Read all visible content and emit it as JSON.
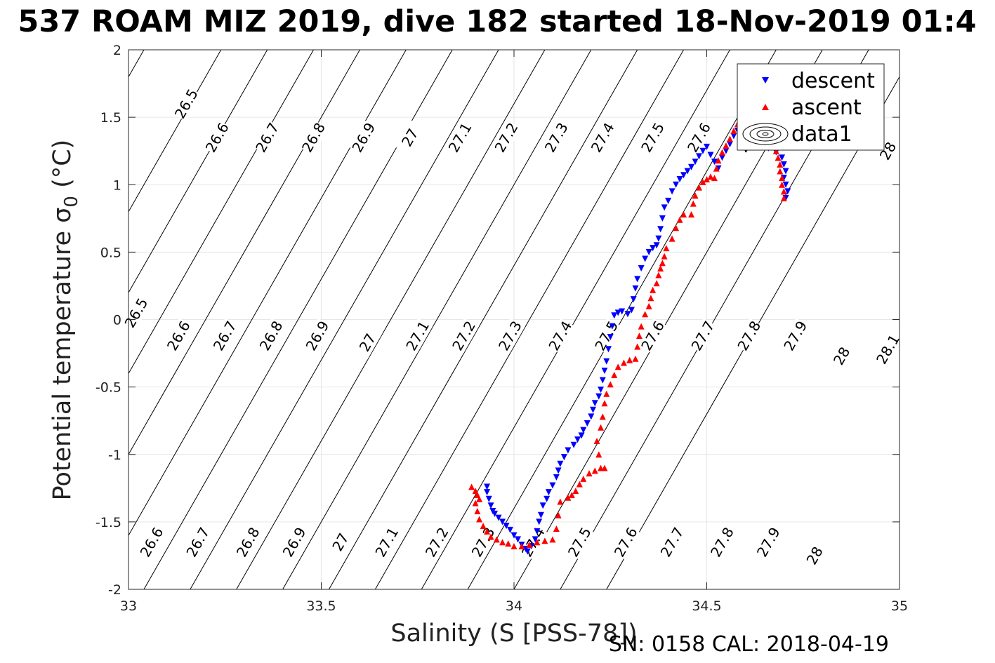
{
  "title": "537 ROAM MIZ 2019, dive 182 started 18-Nov-2019 01:4",
  "footer": "SN: 0158  CAL: 2018-04-19",
  "chart_data": {
    "type": "scatter",
    "xlabel": "Salinity (S [PSS-78])",
    "ylabel_main": "Potential temperature ",
    "ylabel_sym": "σ",
    "ylabel_sub": "0",
    "ylabel_unit": " (°C)",
    "xlim": [
      33,
      35
    ],
    "ylim": [
      -2,
      2
    ],
    "xticks": [
      33,
      33.5,
      34,
      34.5,
      35
    ],
    "xtick_labels": [
      "33",
      "33.5",
      "34",
      "34.5",
      "35"
    ],
    "yticks": [
      -2,
      -1.5,
      -1,
      -0.5,
      0,
      0.5,
      1,
      1.5,
      2
    ],
    "ytick_labels": [
      "-2",
      "-1.5",
      "-1",
      "-0.5",
      "0",
      "0.5",
      "1",
      "1.5",
      "2"
    ],
    "grid": true,
    "legend_position": "top-right",
    "legend": [
      "descent",
      "ascent",
      "data1"
    ],
    "colors": {
      "descent": "#0000ff",
      "ascent": "#ff0000",
      "contour": "#000000",
      "grid": "#e6e6e6"
    },
    "series": [
      {
        "name": "descent",
        "marker": "triangle-down",
        "points": [
          [
            33.93,
            -1.24
          ],
          [
            33.93,
            -1.28
          ],
          [
            33.935,
            -1.33
          ],
          [
            33.94,
            -1.38
          ],
          [
            33.945,
            -1.42
          ],
          [
            33.95,
            -1.44
          ],
          [
            33.96,
            -1.47
          ],
          [
            33.97,
            -1.5
          ],
          [
            33.98,
            -1.53
          ],
          [
            33.99,
            -1.56
          ],
          [
            34.0,
            -1.6
          ],
          [
            34.01,
            -1.63
          ],
          [
            34.02,
            -1.67
          ],
          [
            34.03,
            -1.7
          ],
          [
            34.035,
            -1.72
          ],
          [
            34.045,
            -1.68
          ],
          [
            34.055,
            -1.63
          ],
          [
            34.06,
            -1.57
          ],
          [
            34.065,
            -1.5
          ],
          [
            34.07,
            -1.45
          ],
          [
            34.075,
            -1.38
          ],
          [
            34.085,
            -1.33
          ],
          [
            34.09,
            -1.28
          ],
          [
            34.1,
            -1.23
          ],
          [
            34.11,
            -1.17
          ],
          [
            34.115,
            -1.12
          ],
          [
            34.12,
            -1.07
          ],
          [
            34.13,
            -1.02
          ],
          [
            34.14,
            -0.97
          ],
          [
            34.155,
            -0.93
          ],
          [
            34.165,
            -0.89
          ],
          [
            34.175,
            -0.86
          ],
          [
            34.18,
            -0.82
          ],
          [
            34.19,
            -0.77
          ],
          [
            34.2,
            -0.72
          ],
          [
            34.205,
            -0.67
          ],
          [
            34.21,
            -0.62
          ],
          [
            34.22,
            -0.57
          ],
          [
            34.225,
            -0.52
          ],
          [
            34.23,
            -0.45
          ],
          [
            34.235,
            -0.38
          ],
          [
            34.24,
            -0.31
          ],
          [
            34.245,
            -0.22
          ],
          [
            34.25,
            -0.13
          ],
          [
            34.255,
            -0.05
          ],
          [
            34.26,
            0.03
          ],
          [
            34.27,
            0.05
          ],
          [
            34.28,
            0.06
          ],
          [
            34.295,
            0.04
          ],
          [
            34.305,
            0.07
          ],
          [
            34.31,
            0.15
          ],
          [
            34.315,
            0.23
          ],
          [
            34.32,
            0.3
          ],
          [
            34.33,
            0.38
          ],
          [
            34.34,
            0.45
          ],
          [
            34.35,
            0.5
          ],
          [
            34.36,
            0.53
          ],
          [
            34.37,
            0.55
          ],
          [
            34.375,
            0.6
          ],
          [
            34.38,
            0.67
          ],
          [
            34.385,
            0.75
          ],
          [
            34.39,
            0.83
          ],
          [
            34.4,
            0.88
          ],
          [
            34.41,
            0.95
          ],
          [
            34.42,
            1.0
          ],
          [
            34.43,
            1.04
          ],
          [
            34.44,
            1.07
          ],
          [
            34.45,
            1.1
          ],
          [
            34.46,
            1.13
          ],
          [
            34.47,
            1.17
          ],
          [
            34.48,
            1.21
          ],
          [
            34.49,
            1.25
          ],
          [
            34.5,
            1.28
          ],
          [
            34.51,
            1.22
          ],
          [
            34.52,
            1.17
          ],
          [
            34.53,
            1.12
          ],
          [
            34.54,
            1.2
          ],
          [
            34.55,
            1.25
          ],
          [
            34.56,
            1.3
          ],
          [
            34.57,
            1.36
          ],
          [
            34.58,
            1.4
          ],
          [
            34.59,
            1.42
          ],
          [
            34.6,
            1.45
          ],
          [
            34.61,
            1.4
          ],
          [
            34.62,
            1.33
          ],
          [
            34.64,
            1.3
          ],
          [
            34.66,
            1.27
          ],
          [
            34.68,
            1.24
          ],
          [
            34.695,
            1.2
          ],
          [
            34.7,
            1.15
          ],
          [
            34.705,
            1.1
          ],
          [
            34.7,
            1.05
          ],
          [
            34.705,
            1.0
          ],
          [
            34.71,
            0.95
          ],
          [
            34.705,
            0.9
          ]
        ]
      },
      {
        "name": "ascent",
        "marker": "triangle-up",
        "points": [
          [
            33.89,
            -1.24
          ],
          [
            33.9,
            -1.27
          ],
          [
            33.905,
            -1.3
          ],
          [
            33.91,
            -1.33
          ],
          [
            33.9,
            -1.36
          ],
          [
            33.905,
            -1.42
          ],
          [
            33.91,
            -1.48
          ],
          [
            33.92,
            -1.53
          ],
          [
            33.93,
            -1.57
          ],
          [
            33.94,
            -1.61
          ],
          [
            33.955,
            -1.63
          ],
          [
            33.97,
            -1.65
          ],
          [
            33.985,
            -1.66
          ],
          [
            34.0,
            -1.68
          ],
          [
            34.02,
            -1.68
          ],
          [
            34.04,
            -1.67
          ],
          [
            34.06,
            -1.65
          ],
          [
            34.08,
            -1.64
          ],
          [
            34.1,
            -1.63
          ],
          [
            34.11,
            -1.55
          ],
          [
            34.115,
            -1.45
          ],
          [
            34.12,
            -1.35
          ],
          [
            34.14,
            -1.32
          ],
          [
            34.15,
            -1.3
          ],
          [
            34.16,
            -1.27
          ],
          [
            34.17,
            -1.22
          ],
          [
            34.18,
            -1.18
          ],
          [
            34.195,
            -1.14
          ],
          [
            34.21,
            -1.12
          ],
          [
            34.225,
            -1.1
          ],
          [
            34.235,
            -1.1
          ],
          [
            34.22,
            -1.0
          ],
          [
            34.215,
            -0.9
          ],
          [
            34.225,
            -0.8
          ],
          [
            34.23,
            -0.72
          ],
          [
            34.235,
            -0.62
          ],
          [
            34.24,
            -0.55
          ],
          [
            34.25,
            -0.48
          ],
          [
            34.26,
            -0.41
          ],
          [
            34.27,
            -0.35
          ],
          [
            34.285,
            -0.32
          ],
          [
            34.3,
            -0.3
          ],
          [
            34.315,
            -0.29
          ],
          [
            34.32,
            -0.2
          ],
          [
            34.325,
            -0.12
          ],
          [
            34.33,
            -0.05
          ],
          [
            34.34,
            0.04
          ],
          [
            34.35,
            0.1
          ],
          [
            34.355,
            0.16
          ],
          [
            34.36,
            0.22
          ],
          [
            34.37,
            0.27
          ],
          [
            34.375,
            0.33
          ],
          [
            34.38,
            0.38
          ],
          [
            34.385,
            0.42
          ],
          [
            34.39,
            0.47
          ],
          [
            34.395,
            0.53
          ],
          [
            34.41,
            0.6
          ],
          [
            34.42,
            0.68
          ],
          [
            34.43,
            0.74
          ],
          [
            34.44,
            0.78
          ],
          [
            34.46,
            0.78
          ],
          [
            34.465,
            0.86
          ],
          [
            34.47,
            0.92
          ],
          [
            34.48,
            0.98
          ],
          [
            34.49,
            1.02
          ],
          [
            34.5,
            1.04
          ],
          [
            34.51,
            1.06
          ],
          [
            34.52,
            1.05
          ],
          [
            34.525,
            1.12
          ],
          [
            34.53,
            1.18
          ],
          [
            34.54,
            1.24
          ],
          [
            34.55,
            1.29
          ],
          [
            34.56,
            1.34
          ],
          [
            34.57,
            1.4
          ],
          [
            34.58,
            1.45
          ],
          [
            34.585,
            1.48
          ],
          [
            34.59,
            1.45
          ],
          [
            34.6,
            1.42
          ],
          [
            34.67,
            1.3
          ],
          [
            34.68,
            1.25
          ],
          [
            34.685,
            1.2
          ],
          [
            34.69,
            1.15
          ],
          [
            34.69,
            1.1
          ],
          [
            34.695,
            1.05
          ],
          [
            34.695,
            1.0
          ],
          [
            34.7,
            0.95
          ],
          [
            34.7,
            0.9
          ]
        ]
      }
    ],
    "contours": [
      {
        "level": "26.5",
        "s0": 32.64,
        "dsdt": 0.2,
        "labels": [
          [
            33.02,
            0.05
          ],
          [
            33.15,
            1.6
          ]
        ]
      },
      {
        "level": "26.6",
        "s0": 32.84,
        "dsdt": 0.2,
        "labels": [
          [
            33.06,
            -1.65
          ],
          [
            33.13,
            -0.12
          ],
          [
            33.23,
            1.35
          ]
        ]
      },
      {
        "level": "26.7",
        "s0": 32.96,
        "dsdt": 0.2,
        "labels": [
          [
            33.18,
            -1.65
          ],
          [
            33.25,
            -0.12
          ],
          [
            33.36,
            1.35
          ]
        ]
      },
      {
        "level": "26.8",
        "s0": 33.08,
        "dsdt": 0.2,
        "labels": [
          [
            33.31,
            -1.65
          ],
          [
            33.37,
            -0.12
          ],
          [
            33.48,
            1.35
          ]
        ]
      },
      {
        "level": "26.9",
        "s0": 33.2,
        "dsdt": 0.2,
        "labels": [
          [
            33.43,
            -1.65
          ],
          [
            33.49,
            -0.12
          ],
          [
            33.61,
            1.35
          ]
        ]
      },
      {
        "level": "27",
        "s0": 33.32,
        "dsdt": 0.2,
        "labels": [
          [
            33.55,
            -1.65
          ],
          [
            33.62,
            -0.17
          ],
          [
            33.73,
            1.35
          ]
        ]
      },
      {
        "level": "27.1",
        "s0": 33.44,
        "dsdt": 0.2,
        "labels": [
          [
            33.67,
            -1.65
          ],
          [
            33.75,
            -0.12
          ],
          [
            33.86,
            1.35
          ]
        ]
      },
      {
        "level": "27.2",
        "s0": 33.56,
        "dsdt": 0.2,
        "labels": [
          [
            33.8,
            -1.65
          ],
          [
            33.87,
            -0.12
          ],
          [
            33.98,
            1.35
          ]
        ]
      },
      {
        "level": "27.3",
        "s0": 33.68,
        "dsdt": 0.2,
        "labels": [
          [
            33.92,
            -1.65
          ],
          [
            33.99,
            -0.12
          ],
          [
            34.11,
            1.35
          ]
        ]
      },
      {
        "level": "27.4",
        "s0": 33.8,
        "dsdt": 0.2,
        "labels": [
          [
            34.05,
            -1.65
          ],
          [
            34.12,
            -0.12
          ],
          [
            34.23,
            1.35
          ]
        ]
      },
      {
        "level": "27.5",
        "s0": 33.92,
        "dsdt": 0.2,
        "labels": [
          [
            34.17,
            -1.65
          ],
          [
            34.24,
            -0.12
          ],
          [
            34.36,
            1.35
          ]
        ]
      },
      {
        "level": "27.6",
        "s0": 34.04,
        "dsdt": 0.2,
        "labels": [
          [
            34.29,
            -1.65
          ],
          [
            34.36,
            -0.12
          ],
          [
            34.48,
            1.35
          ]
        ]
      },
      {
        "level": "27.7",
        "s0": 34.16,
        "dsdt": 0.2,
        "labels": [
          [
            34.41,
            -1.65
          ],
          [
            34.49,
            -0.12
          ],
          [
            34.61,
            1.35
          ]
        ]
      },
      {
        "level": "27.8",
        "s0": 34.28,
        "dsdt": 0.2,
        "labels": [
          [
            34.54,
            -1.65
          ],
          [
            34.61,
            -0.12
          ]
        ]
      },
      {
        "level": "27.9",
        "s0": 34.4,
        "dsdt": 0.2,
        "labels": [
          [
            34.66,
            -1.65
          ],
          [
            34.73,
            -0.12
          ]
        ]
      },
      {
        "level": "28",
        "s0": 34.52,
        "dsdt": 0.2,
        "labels": [
          [
            34.78,
            -1.75
          ],
          [
            34.85,
            -0.27
          ],
          [
            34.97,
            1.25
          ]
        ]
      },
      {
        "level": "28.1",
        "s0": 34.64,
        "dsdt": 0.2,
        "labels": [
          [
            34.97,
            -0.22
          ]
        ]
      }
    ]
  }
}
